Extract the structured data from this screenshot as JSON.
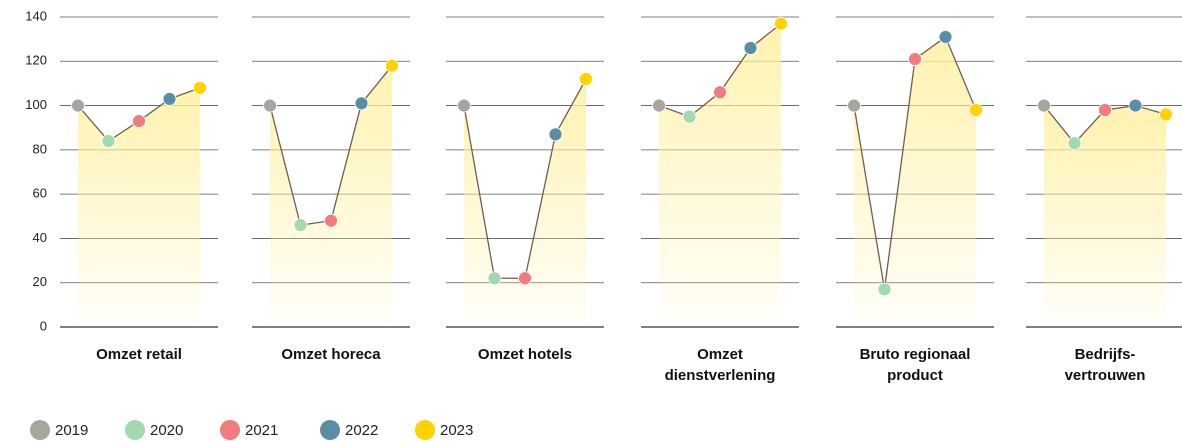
{
  "chart_data": {
    "type": "line",
    "categories": [
      "2019",
      "2020",
      "2021",
      "2022",
      "2023"
    ],
    "point_colors": [
      "#a8a49e",
      "#a3d9b1",
      "#f07c80",
      "#5a8ea6",
      "#ffd200"
    ],
    "line_color": "#6e5f50",
    "area_color": "#fff0a0",
    "ylim": [
      0,
      140
    ],
    "yticks": [
      0,
      20,
      40,
      60,
      80,
      100,
      120,
      140
    ],
    "grid": true,
    "series": [
      {
        "name": "Omzet retail",
        "values": [
          100,
          84,
          93,
          103,
          108
        ]
      },
      {
        "name": "Omzet horeca",
        "values": [
          100,
          46,
          48,
          101,
          118
        ]
      },
      {
        "name": "Omzet hotels",
        "values": [
          100,
          22,
          22,
          87,
          112
        ]
      },
      {
        "name": "Omzet dienstverlening",
        "values": [
          100,
          95,
          106,
          126,
          137
        ]
      },
      {
        "name": "Bruto regionaal product",
        "values": [
          100,
          17,
          121,
          131,
          98
        ]
      },
      {
        "name": "Bedrijfs-vertrouwen",
        "values": [
          100,
          83,
          98,
          100,
          96
        ]
      }
    ]
  }
}
